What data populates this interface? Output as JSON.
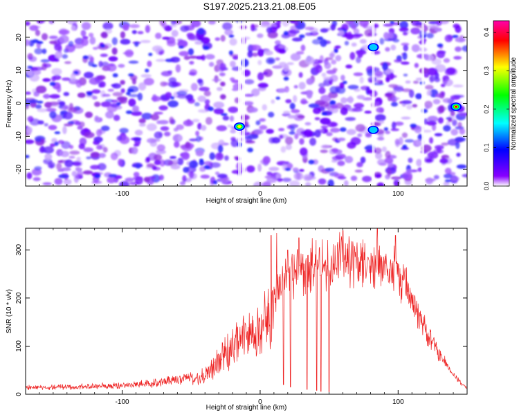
{
  "title": "S197.2025.213.21.08.E05",
  "colors": {
    "line": "#ee2222",
    "axis": "#000000"
  },
  "chart_data": [
    {
      "type": "heatmap",
      "xlabel": "Height of straight line (km)",
      "ylabel": "Frequency (Hz)",
      "xlim": [
        -170,
        150
      ],
      "ylim": [
        -25,
        25
      ],
      "xticks": [
        -100,
        0,
        100
      ],
      "yticks": [
        -20,
        -10,
        0,
        10,
        20
      ],
      "colorbar": {
        "label": "Normalized spectral amplitude",
        "range": [
          0,
          0.43
        ],
        "ticks": [
          0.0,
          0.1,
          0.2,
          0.3,
          0.4
        ],
        "colormap": [
          "#ffffff",
          "#8800ff",
          "#0000ff",
          "#00ffff",
          "#00ff00",
          "#ffff00",
          "#ff0000",
          "#ff00aa"
        ]
      },
      "features": [
        {
          "x": -15,
          "y": -7,
          "value": 0.3
        },
        {
          "x": 82,
          "y": -8,
          "value": 0.15
        },
        {
          "x": 82,
          "y": 17,
          "value": 0.12
        },
        {
          "x": 142,
          "y": -1,
          "value": 0.43
        }
      ]
    },
    {
      "type": "line",
      "xlabel": "Height of straight line (km)",
      "ylabel": "SNR (10 * v/v)",
      "xlim": [
        -170,
        150
      ],
      "ylim": [
        0,
        345
      ],
      "xticks": [
        -100,
        0,
        100
      ],
      "yticks": [
        0,
        100,
        200,
        300
      ],
      "series": [
        {
          "envelope_x": [
            -170,
            -140,
            -110,
            -80,
            -60,
            -40,
            -30,
            -20,
            -10,
            0,
            10,
            20,
            30,
            40,
            50,
            60,
            70,
            80,
            90,
            100,
            110,
            120,
            130,
            140,
            150
          ],
          "envelope_y": [
            18,
            20,
            22,
            28,
            38,
            55,
            95,
            135,
            155,
            175,
            230,
            270,
            285,
            295,
            300,
            302,
            300,
            298,
            295,
            275,
            210,
            150,
            90,
            45,
            12
          ],
          "dips_x": [
            12,
            17,
            22,
            28,
            34,
            41,
            44,
            50
          ],
          "dips_y": [
            5,
            20,
            15,
            12,
            10,
            8,
            6,
            5
          ],
          "spike_x": [
            8,
            12,
            20,
            28,
            60,
            85,
            98
          ],
          "spike_y": [
            330,
            335,
            300,
            325,
            340,
            345,
            330
          ]
        }
      ]
    }
  ]
}
